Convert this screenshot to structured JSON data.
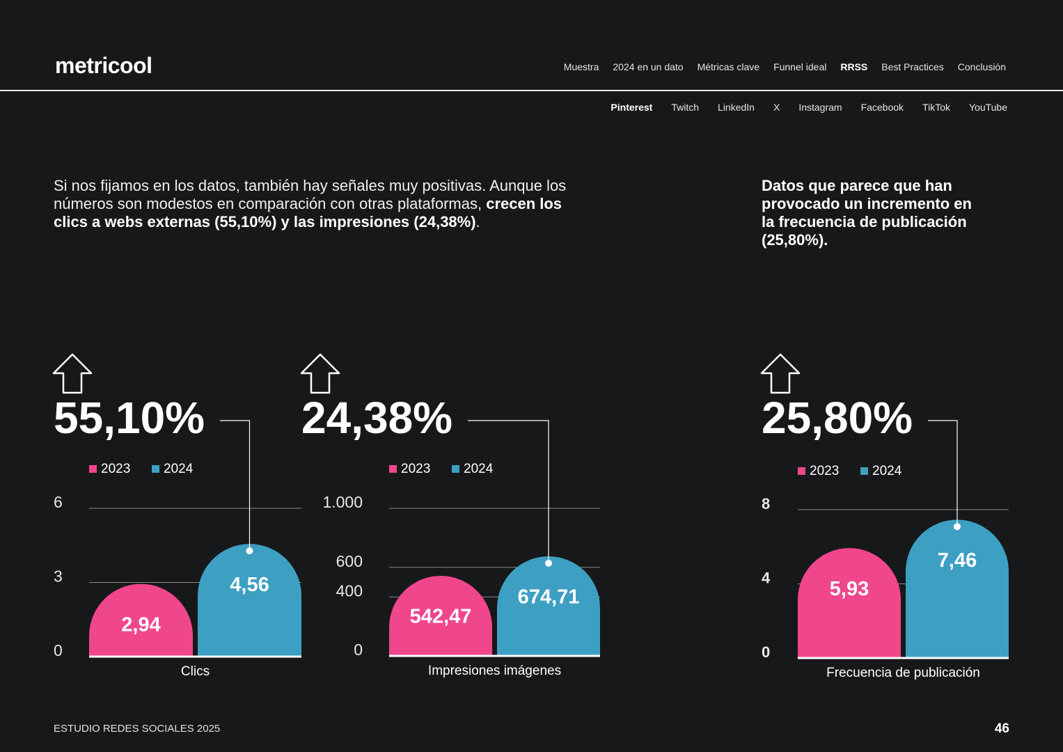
{
  "header": {
    "logo": "metricool",
    "nav": [
      "Muestra",
      "2024 en un dato",
      "Métricas clave",
      "Funnel ideal",
      "RRSS",
      "Best Practices",
      "Conclusión"
    ],
    "subnav": [
      "Pinterest",
      "Twitch",
      "LinkedIn",
      "X",
      "Instagram",
      "Facebook",
      "TikTok",
      "YouTube"
    ]
  },
  "intro": {
    "parts": [
      "Si nos fijamos en los datos, también hay señales muy positivas. Aunque los números son modestos en comparación con otras plataformas, ",
      "crecen los clics a webs externas (55,10%) y las impresiones (24,38%)",
      "."
    ]
  },
  "side_note": "Datos que parece que han provocado un incremento en la frecuencia de publicación (25,80%).",
  "chart_data": [
    {
      "type": "bar",
      "headline": "55,10%",
      "categories": [
        "Clics"
      ],
      "series": [
        {
          "name": "2023",
          "color": "#f0468c",
          "values": [
            2.94
          ],
          "value_labels": [
            "2,94"
          ]
        },
        {
          "name": "2024",
          "color": "#3d9fc2",
          "values": [
            4.56
          ],
          "value_labels": [
            "4,56"
          ]
        }
      ],
      "ylim": [
        0,
        6
      ],
      "yticks": [
        0,
        3,
        6
      ],
      "grid": true
    },
    {
      "type": "bar",
      "headline": "24,38%",
      "categories": [
        "Impresiones imágenes"
      ],
      "series": [
        {
          "name": "2023",
          "color": "#f0468c",
          "values": [
            542.47
          ],
          "value_labels": [
            "542,47"
          ]
        },
        {
          "name": "2024",
          "color": "#3d9fc2",
          "values": [
            674.71
          ],
          "value_labels": [
            "674,71"
          ]
        }
      ],
      "ylim": [
        0,
        1000
      ],
      "yticks": [
        0,
        400,
        600,
        {
          "value": 1000,
          "label": "1.000"
        }
      ],
      "grid": true
    },
    {
      "type": "bar",
      "headline": "25,80%",
      "categories": [
        "Frecuencia de publicación"
      ],
      "series": [
        {
          "name": "2023",
          "color": "#f0468c",
          "values": [
            5.93
          ],
          "value_labels": [
            "5,93"
          ]
        },
        {
          "name": "2024",
          "color": "#3d9fc2",
          "values": [
            7.46
          ],
          "value_labels": [
            "7,46"
          ]
        }
      ],
      "ylim": [
        0,
        8
      ],
      "yticks": [
        0,
        4,
        8
      ],
      "grid": true
    }
  ],
  "footer": {
    "title": "ESTUDIO REDES SOCIALES 2025",
    "page": "46"
  }
}
